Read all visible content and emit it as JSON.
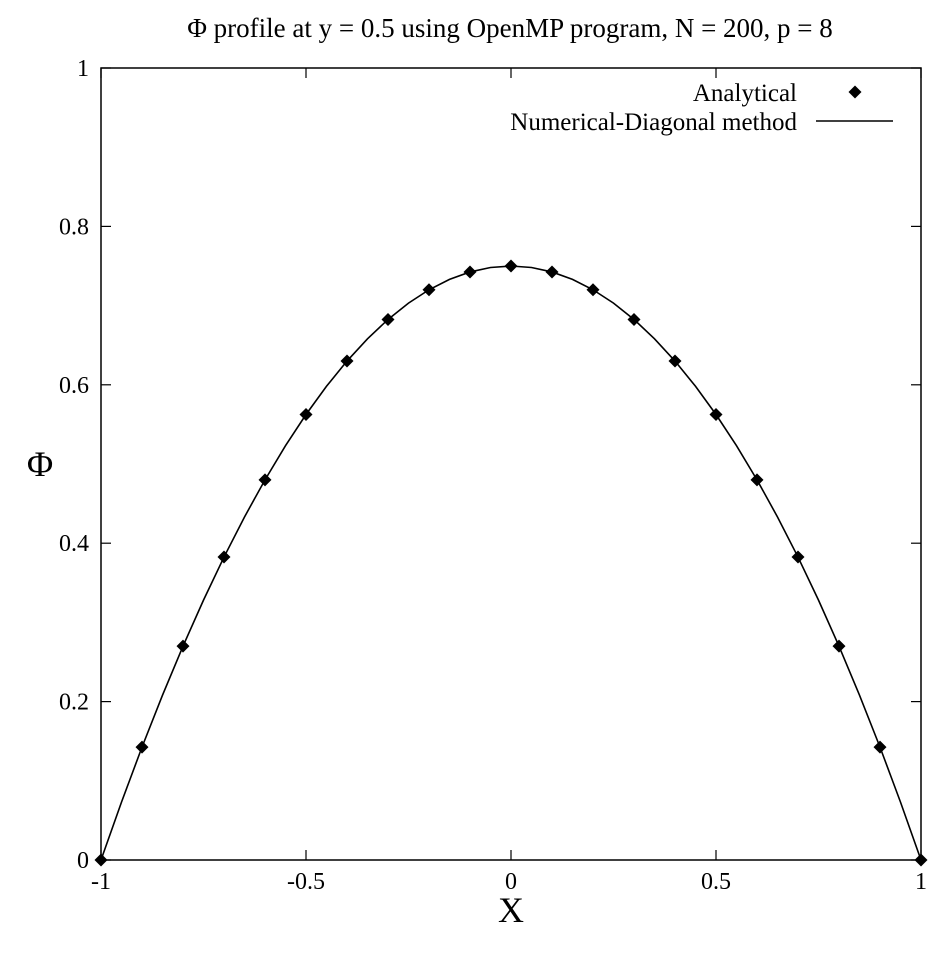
{
  "chart_data": {
    "type": "line",
    "title": "Φ profile at y = 0.5 using OpenMP program, N = 200, p = 8",
    "xlabel": "X",
    "ylabel": "Φ",
    "xlim": [
      -1,
      1
    ],
    "ylim": [
      0,
      1
    ],
    "xticks": [
      "-1",
      "-0.5",
      "0",
      "0.5",
      "1"
    ],
    "xtick_values": [
      -1,
      -0.5,
      0,
      0.5,
      1
    ],
    "yticks": [
      "0",
      "0.2",
      "0.4",
      "0.6",
      "0.8",
      "1"
    ],
    "ytick_values": [
      0,
      0.2,
      0.4,
      0.6,
      0.8,
      1
    ],
    "grid": false,
    "legend_position": "top-right",
    "series": [
      {
        "name": "Analytical",
        "style": "markers",
        "marker": "diamond",
        "color": "#000000",
        "x": [
          -1,
          -0.9,
          -0.8,
          -0.7,
          -0.6,
          -0.5,
          -0.4,
          -0.3,
          -0.2,
          -0.1,
          0,
          0.1,
          0.2,
          0.3,
          0.4,
          0.5,
          0.6,
          0.7,
          0.8,
          0.9,
          1
        ],
        "y": [
          0,
          0.1425,
          0.27,
          0.3825,
          0.48,
          0.5625,
          0.63,
          0.6825,
          0.72,
          0.7425,
          0.75,
          0.7425,
          0.72,
          0.6825,
          0.63,
          0.5625,
          0.48,
          0.3825,
          0.27,
          0.1425,
          0
        ]
      },
      {
        "name": "Numerical-Diagonal method",
        "style": "line",
        "color": "#000000",
        "x": [
          -1,
          -0.95,
          -0.9,
          -0.85,
          -0.8,
          -0.75,
          -0.7,
          -0.65,
          -0.6,
          -0.55,
          -0.5,
          -0.45,
          -0.4,
          -0.35,
          -0.3,
          -0.25,
          -0.2,
          -0.15,
          -0.1,
          -0.05,
          0,
          0.05,
          0.1,
          0.15,
          0.2,
          0.25,
          0.3,
          0.35,
          0.4,
          0.45,
          0.5,
          0.55,
          0.6,
          0.65,
          0.7,
          0.75,
          0.8,
          0.85,
          0.9,
          0.95,
          1
        ],
        "y": [
          0,
          0.0731,
          0.1425,
          0.2081,
          0.27,
          0.3281,
          0.3825,
          0.4331,
          0.48,
          0.5231,
          0.5625,
          0.5981,
          0.63,
          0.6581,
          0.6825,
          0.7031,
          0.72,
          0.7331,
          0.7425,
          0.7481,
          0.75,
          0.7481,
          0.7425,
          0.7331,
          0.72,
          0.7031,
          0.6825,
          0.6581,
          0.63,
          0.5981,
          0.5625,
          0.5231,
          0.48,
          0.4331,
          0.3825,
          0.3281,
          0.27,
          0.2081,
          0.1425,
          0.0731,
          0
        ]
      }
    ]
  }
}
